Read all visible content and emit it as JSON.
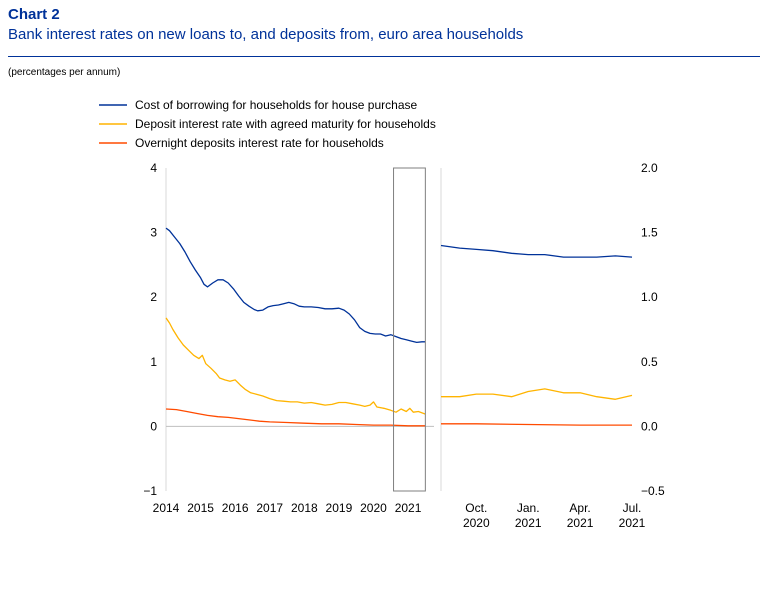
{
  "header": {
    "chart_label": "Chart 2",
    "title": "Bank interest rates on new loans to, and deposits from, euro area households",
    "units": "(percentages per annum)"
  },
  "chart_data": [
    {
      "type": "line",
      "panel": "left",
      "x_ticks": [
        "2014",
        "2015",
        "2016",
        "2017",
        "2018",
        "2019",
        "2020",
        "2021"
      ],
      "xlim": [
        2014.0,
        2021.75
      ],
      "ylim": [
        -1,
        4
      ],
      "y_ticks": [
        "4",
        "3",
        "2",
        "1",
        "0",
        "−1"
      ],
      "grid": false,
      "zero_line": true,
      "highlight_box_x": [
        2020.58,
        2021.5
      ],
      "series": [
        {
          "name": "Cost of borrowing for households for house purchase",
          "color": "#003299",
          "points": [
            [
              2014.0,
              3.07
            ],
            [
              2014.1,
              3.03
            ],
            [
              2014.25,
              2.93
            ],
            [
              2014.4,
              2.83
            ],
            [
              2014.55,
              2.7
            ],
            [
              2014.7,
              2.55
            ],
            [
              2014.85,
              2.42
            ],
            [
              2015.0,
              2.3
            ],
            [
              2015.1,
              2.2
            ],
            [
              2015.2,
              2.16
            ],
            [
              2015.35,
              2.22
            ],
            [
              2015.5,
              2.27
            ],
            [
              2015.65,
              2.27
            ],
            [
              2015.8,
              2.22
            ],
            [
              2015.95,
              2.13
            ],
            [
              2016.1,
              2.02
            ],
            [
              2016.25,
              1.92
            ],
            [
              2016.4,
              1.86
            ],
            [
              2016.55,
              1.81
            ],
            [
              2016.65,
              1.79
            ],
            [
              2016.8,
              1.8
            ],
            [
              2016.95,
              1.85
            ],
            [
              2017.1,
              1.87
            ],
            [
              2017.25,
              1.88
            ],
            [
              2017.4,
              1.9
            ],
            [
              2017.55,
              1.92
            ],
            [
              2017.7,
              1.9
            ],
            [
              2017.85,
              1.86
            ],
            [
              2018.0,
              1.85
            ],
            [
              2018.2,
              1.85
            ],
            [
              2018.4,
              1.84
            ],
            [
              2018.6,
              1.82
            ],
            [
              2018.8,
              1.82
            ],
            [
              2019.0,
              1.83
            ],
            [
              2019.15,
              1.8
            ],
            [
              2019.3,
              1.74
            ],
            [
              2019.45,
              1.65
            ],
            [
              2019.6,
              1.53
            ],
            [
              2019.75,
              1.47
            ],
            [
              2019.9,
              1.44
            ],
            [
              2020.05,
              1.43
            ],
            [
              2020.2,
              1.43
            ],
            [
              2020.35,
              1.4
            ],
            [
              2020.5,
              1.42
            ],
            [
              2020.65,
              1.39
            ],
            [
              2020.8,
              1.36
            ],
            [
              2020.95,
              1.34
            ],
            [
              2021.1,
              1.32
            ],
            [
              2021.25,
              1.3
            ],
            [
              2021.4,
              1.31
            ],
            [
              2021.5,
              1.31
            ]
          ]
        },
        {
          "name": "Deposit interest rate with agreed maturity for households",
          "color": "#ffb400",
          "points": [
            [
              2014.0,
              1.68
            ],
            [
              2014.1,
              1.6
            ],
            [
              2014.2,
              1.5
            ],
            [
              2014.35,
              1.37
            ],
            [
              2014.5,
              1.26
            ],
            [
              2014.65,
              1.18
            ],
            [
              2014.8,
              1.1
            ],
            [
              2014.95,
              1.05
            ],
            [
              2015.05,
              1.1
            ],
            [
              2015.15,
              0.97
            ],
            [
              2015.3,
              0.9
            ],
            [
              2015.45,
              0.82
            ],
            [
              2015.55,
              0.75
            ],
            [
              2015.7,
              0.72
            ],
            [
              2015.85,
              0.7
            ],
            [
              2016.0,
              0.72
            ],
            [
              2016.15,
              0.64
            ],
            [
              2016.3,
              0.57
            ],
            [
              2016.45,
              0.52
            ],
            [
              2016.6,
              0.5
            ],
            [
              2016.8,
              0.47
            ],
            [
              2017.0,
              0.43
            ],
            [
              2017.2,
              0.4
            ],
            [
              2017.4,
              0.39
            ],
            [
              2017.6,
              0.38
            ],
            [
              2017.8,
              0.38
            ],
            [
              2018.0,
              0.36
            ],
            [
              2018.2,
              0.37
            ],
            [
              2018.4,
              0.35
            ],
            [
              2018.6,
              0.33
            ],
            [
              2018.8,
              0.34
            ],
            [
              2019.0,
              0.37
            ],
            [
              2019.2,
              0.37
            ],
            [
              2019.4,
              0.35
            ],
            [
              2019.6,
              0.33
            ],
            [
              2019.75,
              0.31
            ],
            [
              2019.9,
              0.33
            ],
            [
              2020.0,
              0.38
            ],
            [
              2020.1,
              0.3
            ],
            [
              2020.3,
              0.28
            ],
            [
              2020.5,
              0.25
            ],
            [
              2020.65,
              0.22
            ],
            [
              2020.8,
              0.27
            ],
            [
              2020.95,
              0.23
            ],
            [
              2021.05,
              0.28
            ],
            [
              2021.15,
              0.22
            ],
            [
              2021.3,
              0.23
            ],
            [
              2021.5,
              0.19
            ]
          ]
        },
        {
          "name": "Overnight deposits interest rate for households",
          "color": "#ff4b00",
          "points": [
            [
              2014.0,
              0.27
            ],
            [
              2014.3,
              0.26
            ],
            [
              2014.6,
              0.23
            ],
            [
              2014.9,
              0.2
            ],
            [
              2015.2,
              0.17
            ],
            [
              2015.5,
              0.15
            ],
            [
              2015.8,
              0.14
            ],
            [
              2016.1,
              0.12
            ],
            [
              2016.4,
              0.1
            ],
            [
              2016.7,
              0.08
            ],
            [
              2017.0,
              0.07
            ],
            [
              2017.5,
              0.06
            ],
            [
              2018.0,
              0.05
            ],
            [
              2018.5,
              0.04
            ],
            [
              2019.0,
              0.04
            ],
            [
              2019.5,
              0.03
            ],
            [
              2020.0,
              0.02
            ],
            [
              2020.5,
              0.02
            ],
            [
              2021.0,
              0.01
            ],
            [
              2021.5,
              0.01
            ]
          ]
        }
      ]
    },
    {
      "type": "line",
      "panel": "right",
      "x_ticks": [
        "Oct. 2020",
        "Jan. 2021",
        "Apr. 2021",
        "Jul. 2021"
      ],
      "x_tick_lines": [
        [
          "Oct.",
          "2020"
        ],
        [
          "Jan.",
          "2021"
        ],
        [
          "Apr.",
          "2021"
        ],
        [
          "Jul.",
          "2021"
        ]
      ],
      "x_tick_positions": [
        2020.75,
        2021.0,
        2021.25,
        2021.5
      ],
      "xlim": [
        2020.58,
        2021.5
      ],
      "ylim": [
        -0.5,
        2.0
      ],
      "y_ticks": [
        "2.0",
        "1.5",
        "1.0",
        "0.5",
        "0.0",
        "−0.5"
      ],
      "grid": false,
      "series": [
        {
          "name": "Cost of borrowing for households for house purchase",
          "color": "#003299",
          "points": [
            [
              2020.58,
              1.4
            ],
            [
              2020.67,
              1.38
            ],
            [
              2020.75,
              1.37
            ],
            [
              2020.83,
              1.36
            ],
            [
              2020.92,
              1.34
            ],
            [
              2021.0,
              1.33
            ],
            [
              2021.08,
              1.33
            ],
            [
              2021.17,
              1.31
            ],
            [
              2021.25,
              1.31
            ],
            [
              2021.33,
              1.31
            ],
            [
              2021.42,
              1.32
            ],
            [
              2021.5,
              1.31
            ]
          ]
        },
        {
          "name": "Deposit interest rate with agreed maturity for households",
          "color": "#ffb400",
          "points": [
            [
              2020.58,
              0.23
            ],
            [
              2020.67,
              0.23
            ],
            [
              2020.75,
              0.25
            ],
            [
              2020.83,
              0.25
            ],
            [
              2020.92,
              0.23
            ],
            [
              2021.0,
              0.27
            ],
            [
              2021.08,
              0.29
            ],
            [
              2021.17,
              0.26
            ],
            [
              2021.25,
              0.26
            ],
            [
              2021.33,
              0.23
            ],
            [
              2021.42,
              0.21
            ],
            [
              2021.5,
              0.24
            ]
          ]
        },
        {
          "name": "Overnight deposits interest rate for households",
          "color": "#ff4b00",
          "points": [
            [
              2020.58,
              0.02
            ],
            [
              2020.75,
              0.02
            ],
            [
              2021.0,
              0.015
            ],
            [
              2021.25,
              0.01
            ],
            [
              2021.5,
              0.01
            ]
          ]
        }
      ]
    }
  ]
}
